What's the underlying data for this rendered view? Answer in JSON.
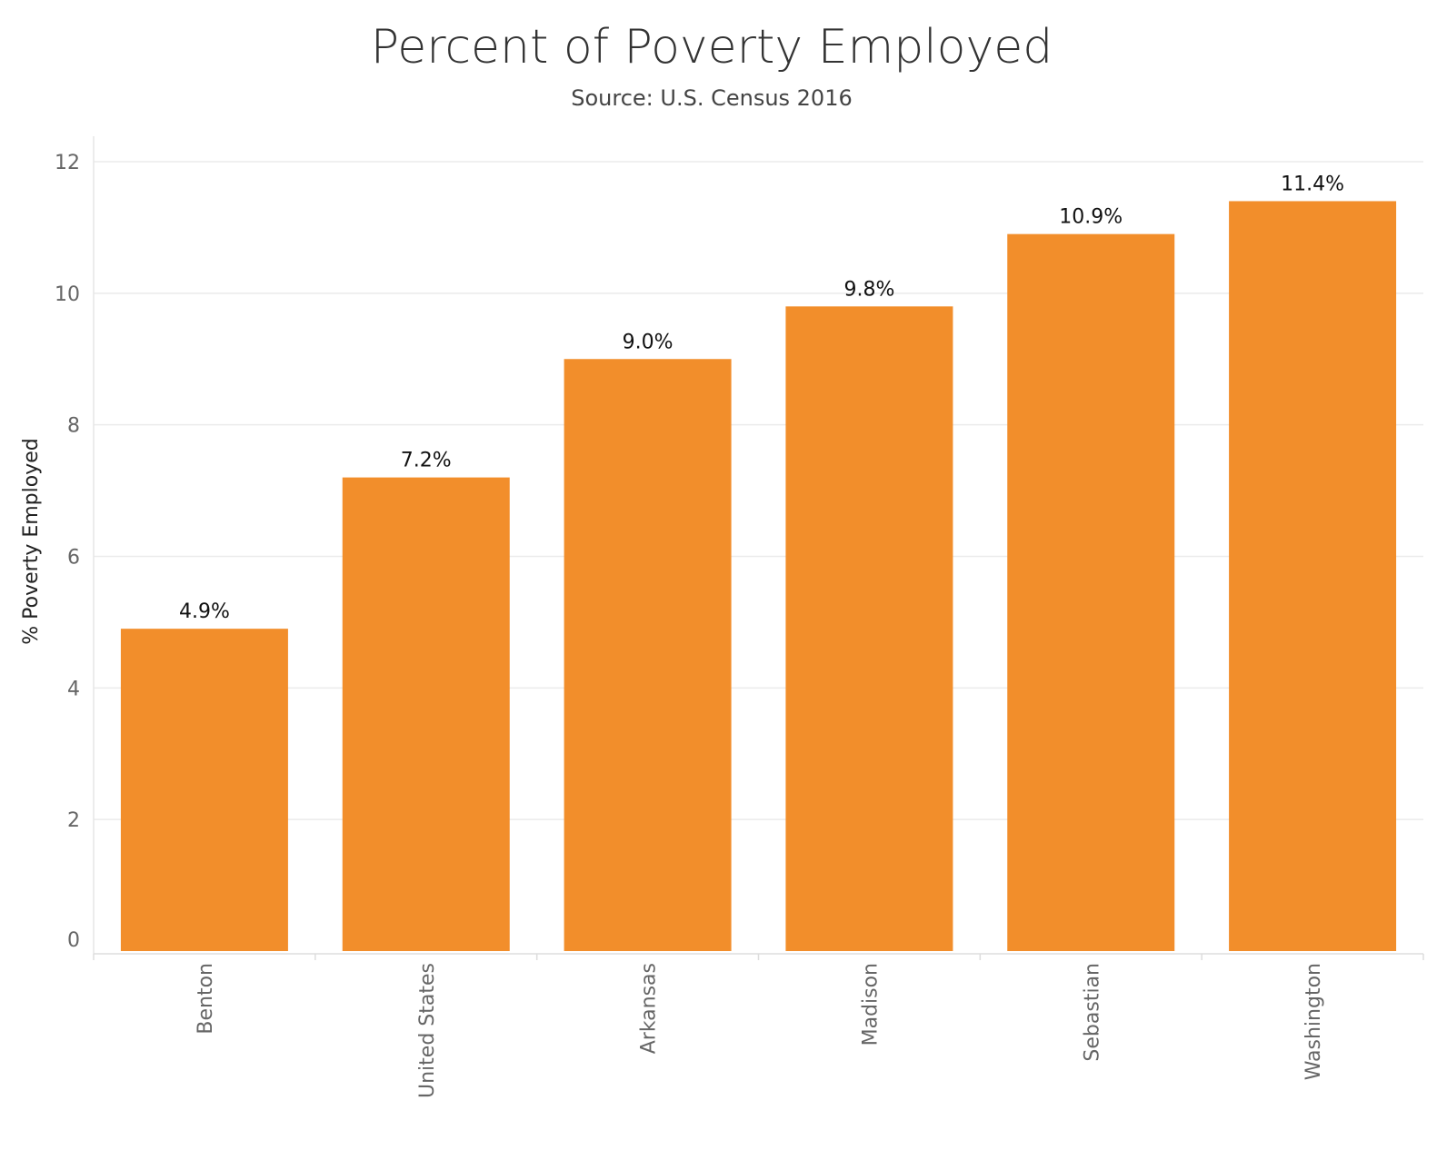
{
  "chart_data": {
    "type": "bar",
    "title": "Percent of Poverty Employed",
    "subtitle": "Source: U.S. Census 2016",
    "ylabel": "% Poverty Employed",
    "xlabel": "",
    "categories": [
      "Benton",
      "United States",
      "Arkansas",
      "Madison",
      "Sebastian",
      "Washington"
    ],
    "values": [
      4.9,
      7.2,
      9.0,
      9.8,
      10.9,
      11.4
    ],
    "data_labels": [
      "4.9%",
      "7.2%",
      "9.0%",
      "9.8%",
      "10.9%",
      "11.4%"
    ],
    "ylim": [
      0,
      12
    ],
    "yticks": [
      0,
      2,
      4,
      6,
      8,
      10,
      12
    ],
    "grid": true,
    "bar_color": "#F28E2B",
    "legend": "none"
  }
}
